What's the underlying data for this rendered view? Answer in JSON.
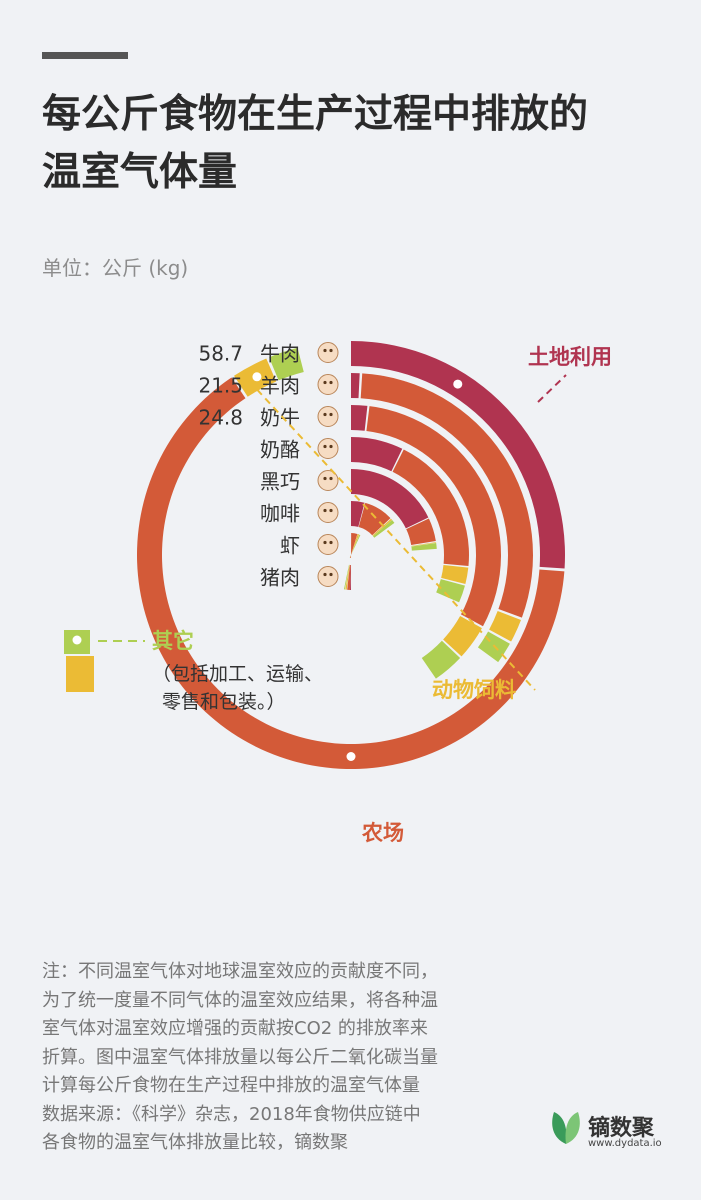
{
  "header": {
    "title_line1": "每公斤食物在生产过程中排放的",
    "title_line2": "温室气体量",
    "unit": "单位：公斤 (kg)"
  },
  "colors": {
    "land_use": "#b03450",
    "farm": "#d35a38",
    "animal_feed": "#ebbb35",
    "other": "#aecf52",
    "label_text": "#333333",
    "background": "#f0f2f5"
  },
  "chart_data": {
    "type": "radial-stacked-bar",
    "title": "每公斤食物在生产过程中排放的温室气体量",
    "unit": "公斤 (kg)",
    "legend": [
      {
        "key": "land_use",
        "label": "土地利用"
      },
      {
        "key": "farm",
        "label": "农场"
      },
      {
        "key": "animal_feed",
        "label": "动物饲料"
      },
      {
        "key": "other",
        "label": "其它",
        "sublabel_line1": "（包括加工、运输、",
        "sublabel_line2": "零售和包装。）"
      }
    ],
    "categories": [
      "牛肉",
      "羊肉",
      "奶牛",
      "奶酪",
      "黑巧",
      "咖啡",
      "虾",
      "猪肉"
    ],
    "icons": [
      "cow-icon",
      "sheep-icon",
      "dairy-cow-icon",
      "cheese-icon",
      "chocolate-icon",
      "coffee-icon",
      "shrimp-icon",
      "pig-icon"
    ],
    "totals": [
      "58.7",
      "21.5",
      "24.8",
      "",
      "",
      "",
      "",
      ""
    ],
    "series": [
      {
        "name": "土地利用",
        "key": "land_use",
        "values": [
          16,
          0.6,
          1.2,
          4.5,
          11.0,
          2.6,
          0.1,
          0.3
        ]
      },
      {
        "name": "农场",
        "key": "farm",
        "values": [
          39.4,
          18.2,
          19.0,
          11.8,
          2.8,
          5.5,
          2.9,
          0.9
        ]
      },
      {
        "name": "动物饲料",
        "key": "animal_feed",
        "values": [
          1.8,
          1.4,
          2.4,
          1.5,
          0.1,
          0.3,
          0.8,
          0.5
        ]
      },
      {
        "name": "其它",
        "key": "other",
        "values": [
          1.5,
          1.3,
          2.2,
          1.6,
          0.8,
          0.8,
          0.6,
          0.4
        ]
      }
    ]
  },
  "footer": {
    "note_lines": [
      "注：不同温室气体对地球温室效应的贡献度不同，",
      "为了统一度量不同气体的温室效应结果，将各种温",
      "室气体对温室效应增强的贡献按CO2 的排放率来",
      "折算。图中温室气体排放量以每公斤二氧化碳当量",
      "计算每公斤食物在生产过程中排放的温室气体量",
      "数据来源：《科学》杂志，2018年食物供应链中",
      "各食物的温室气体排放量比较，镝数聚"
    ]
  },
  "logo": {
    "name": "镝数聚",
    "url": "www.dydata.io"
  }
}
